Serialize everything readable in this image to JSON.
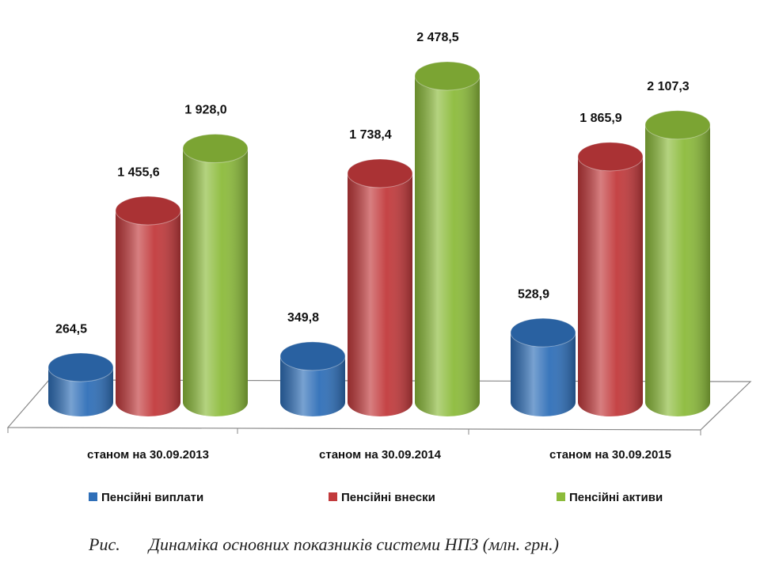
{
  "chart_data": {
    "type": "bar",
    "categories": [
      "станом на 30.09.2013",
      "станом на 30.09.2014",
      "станом на 30.09.2015"
    ],
    "series": [
      {
        "name": "Пенсійні виплати",
        "color": "#2f6fb8",
        "values": [
          264.5,
          349.8,
          528.9
        ],
        "value_labels": [
          "264,5",
          "349,8",
          "528,9"
        ]
      },
      {
        "name": "Пенсійні внески",
        "color": "#c23a3c",
        "values": [
          1455.6,
          1738.4,
          1865.9
        ],
        "value_labels": [
          "1 455,6",
          "1 738,4",
          "1 865,9"
        ]
      },
      {
        "name": "Пенсійні активи",
        "color": "#8cbb3b",
        "values": [
          1928.0,
          2478.5,
          2107.3
        ],
        "value_labels": [
          "1 928,0",
          "2 478,5",
          "2 107,3"
        ]
      }
    ],
    "caption": {
      "label": "Рис.",
      "text": "Динаміка основних показників системи НПЗ (млн. грн.)"
    }
  }
}
